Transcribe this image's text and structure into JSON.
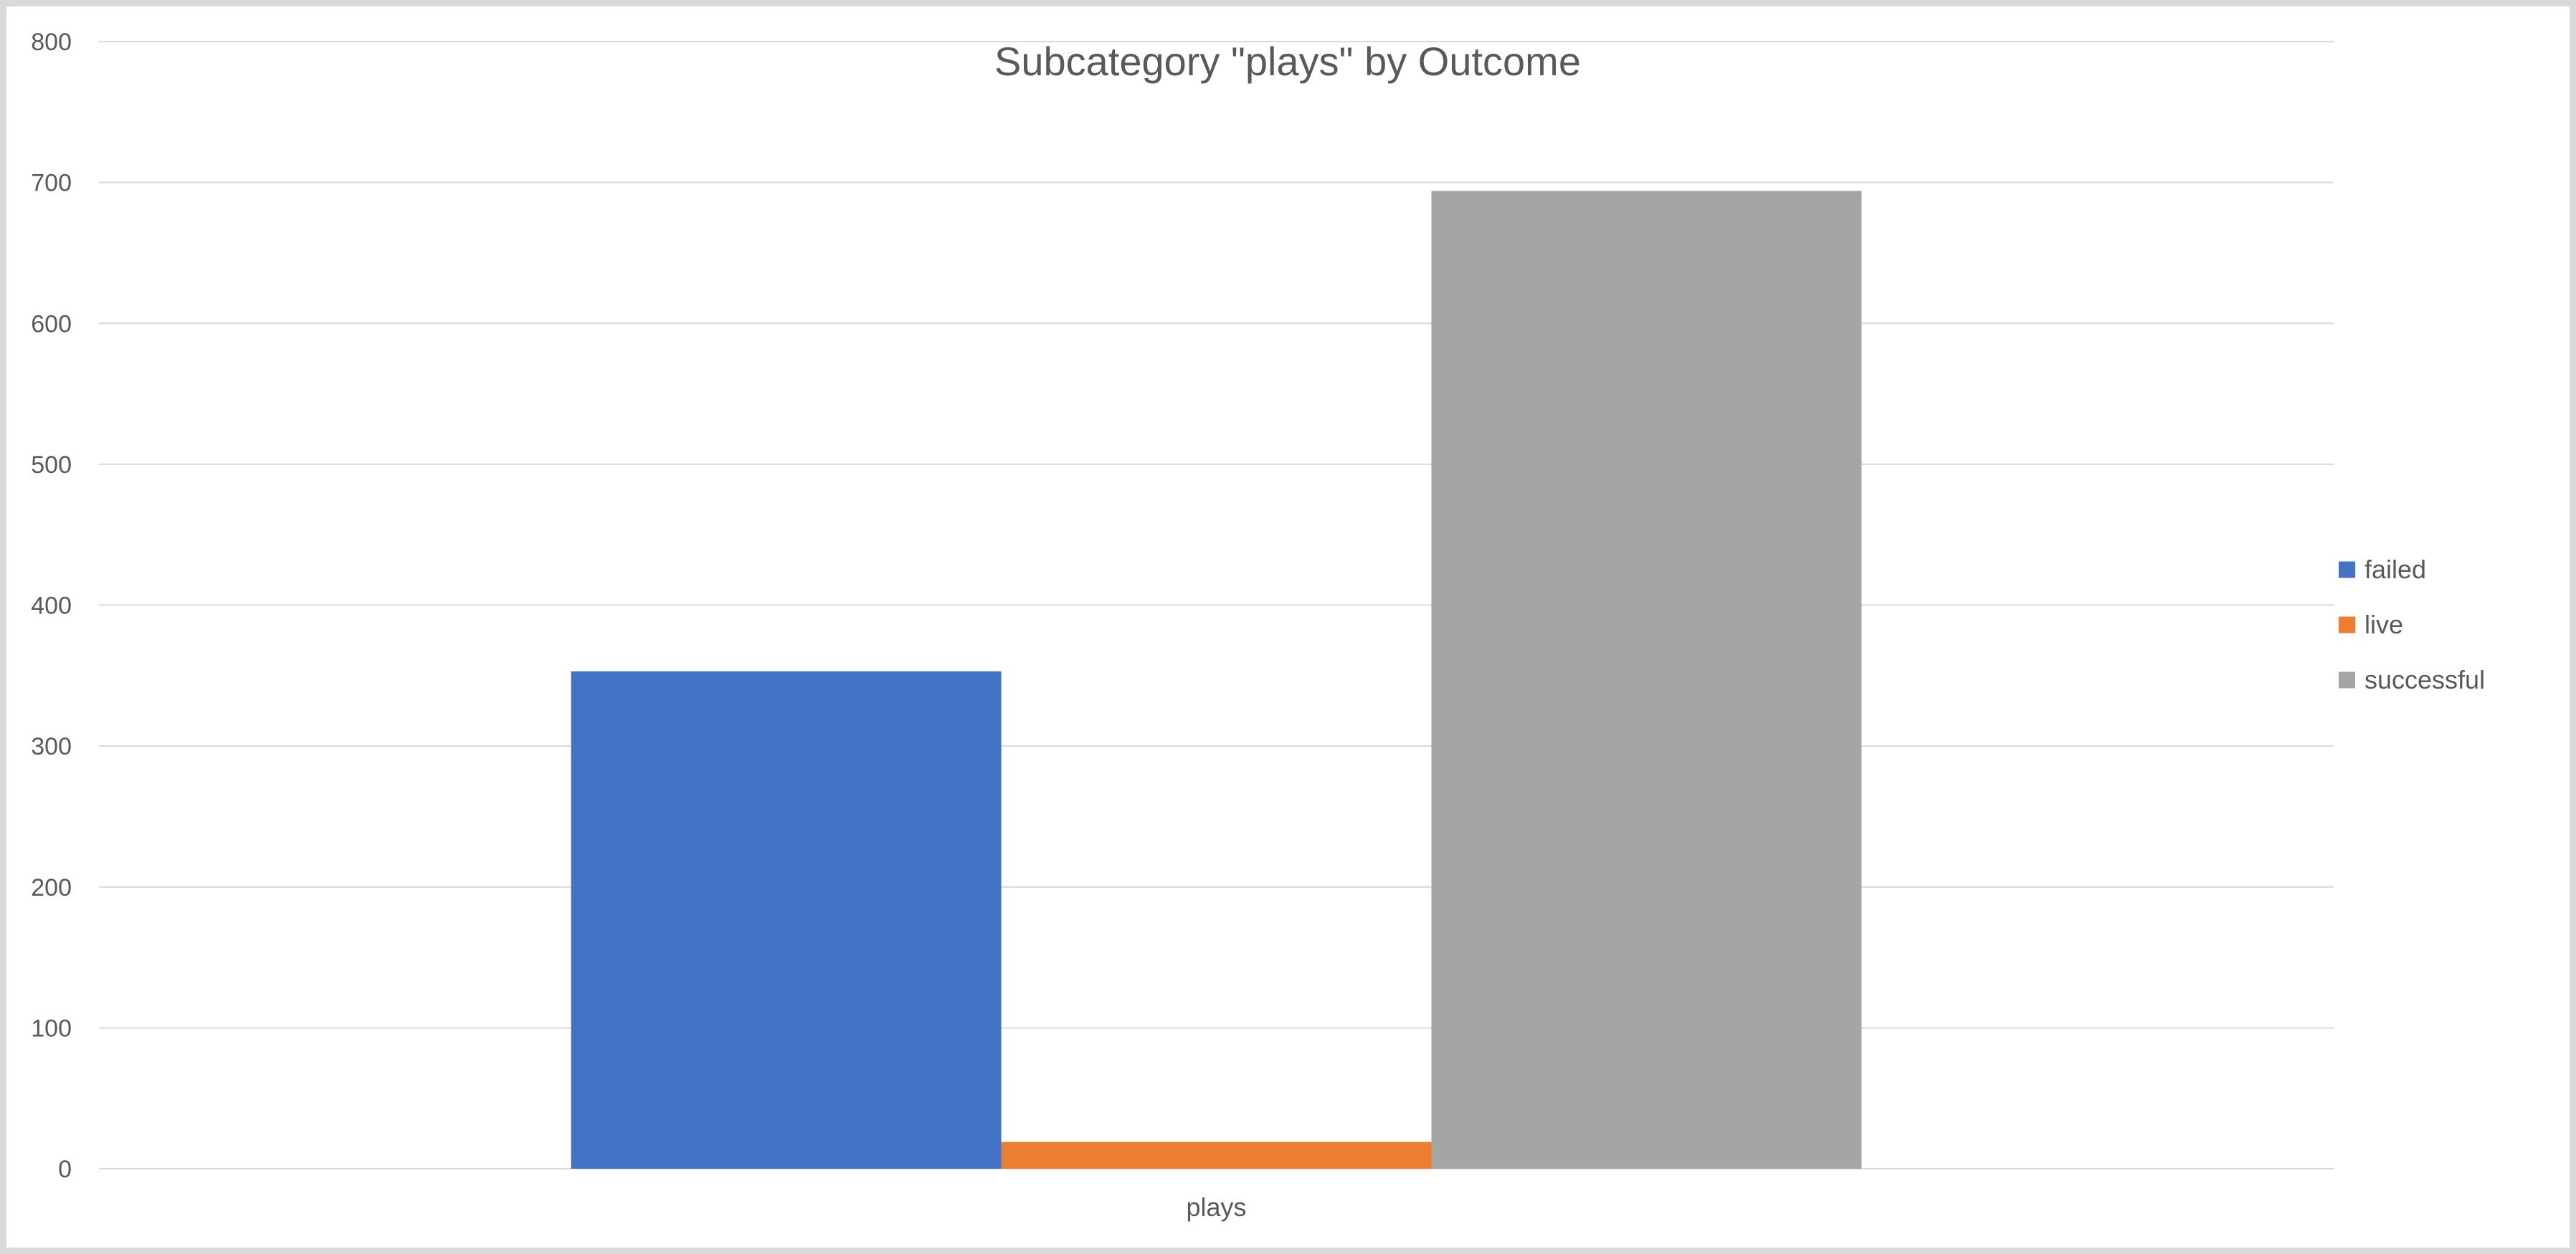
{
  "chart_data": {
    "type": "bar",
    "title": "Subcategory \"plays\" by Outcome",
    "categories": [
      "plays"
    ],
    "series": [
      {
        "name": "failed",
        "values": [
          353
        ],
        "color": "#4472c4"
      },
      {
        "name": "live",
        "values": [
          19
        ],
        "color": "#ed7d31"
      },
      {
        "name": "successful",
        "values": [
          694
        ],
        "color": "#a5a5a5"
      }
    ],
    "ylim": [
      0,
      800
    ],
    "yticks": [
      0,
      100,
      200,
      300,
      400,
      500,
      600,
      700,
      800
    ],
    "grid": true,
    "legend": "right"
  }
}
